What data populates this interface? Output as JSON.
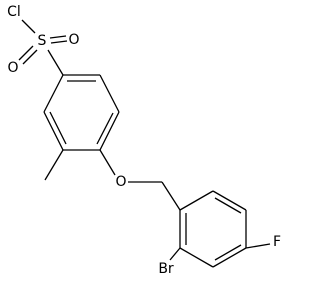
{
  "atoms": {
    "cl": "Cl",
    "s": "S",
    "o1": "O",
    "o2": "O",
    "o3": "O",
    "br": "Br",
    "f": "F"
  }
}
